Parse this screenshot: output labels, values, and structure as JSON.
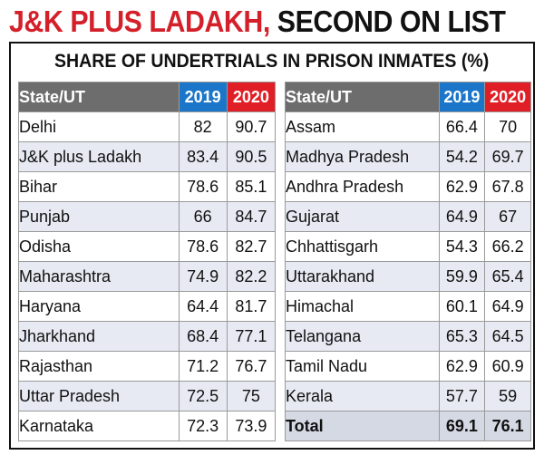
{
  "headline": {
    "red": "J&K PLUS LADAKH,",
    "black": " SECOND ON LIST"
  },
  "chart_data": {
    "type": "table",
    "title": "SHARE OF UNDERTRIALS IN PRISON INMATES (%)",
    "columns": [
      "State/UT",
      "2019",
      "2020"
    ],
    "colors": {
      "2019": "#1b75c8",
      "2020": "#e01e26",
      "state_header": "#6d6d6d"
    },
    "left_rows": [
      {
        "state": "Delhi",
        "y2019": "82",
        "y2020": "90.7"
      },
      {
        "state": "J&K plus Ladakh",
        "y2019": "83.4",
        "y2020": "90.5"
      },
      {
        "state": "Bihar",
        "y2019": "78.6",
        "y2020": "85.1"
      },
      {
        "state": "Punjab",
        "y2019": "66",
        "y2020": "84.7"
      },
      {
        "state": "Odisha",
        "y2019": "78.6",
        "y2020": "82.7"
      },
      {
        "state": "Maharashtra",
        "y2019": "74.9",
        "y2020": "82.2"
      },
      {
        "state": "Haryana",
        "y2019": "64.4",
        "y2020": "81.7"
      },
      {
        "state": "Jharkhand",
        "y2019": "68.4",
        "y2020": "77.1"
      },
      {
        "state": "Rajasthan",
        "y2019": "71.2",
        "y2020": "76.7"
      },
      {
        "state": "Uttar Pradesh",
        "y2019": "72.5",
        "y2020": "75"
      },
      {
        "state": "Karnataka",
        "y2019": "72.3",
        "y2020": "73.9"
      }
    ],
    "right_rows": [
      {
        "state": "Assam",
        "y2019": "66.4",
        "y2020": "70"
      },
      {
        "state": "Madhya Pradesh",
        "y2019": "54.2",
        "y2020": "69.7"
      },
      {
        "state": "Andhra Pradesh",
        "y2019": "62.9",
        "y2020": "67.8"
      },
      {
        "state": "Gujarat",
        "y2019": "64.9",
        "y2020": "67"
      },
      {
        "state": "Chhattisgarh",
        "y2019": "54.3",
        "y2020": "66.2"
      },
      {
        "state": "Uttarakhand",
        "y2019": "59.9",
        "y2020": "65.4"
      },
      {
        "state": "Himachal",
        "y2019": "60.1",
        "y2020": "64.9"
      },
      {
        "state": "Telangana",
        "y2019": "65.3",
        "y2020": "64.5"
      },
      {
        "state": "Tamil Nadu",
        "y2019": "62.9",
        "y2020": "60.9"
      },
      {
        "state": "Kerala",
        "y2019": "57.7",
        "y2020": "59"
      }
    ],
    "total": {
      "state": "Total",
      "y2019": "69.1",
      "y2020": "76.1"
    }
  }
}
